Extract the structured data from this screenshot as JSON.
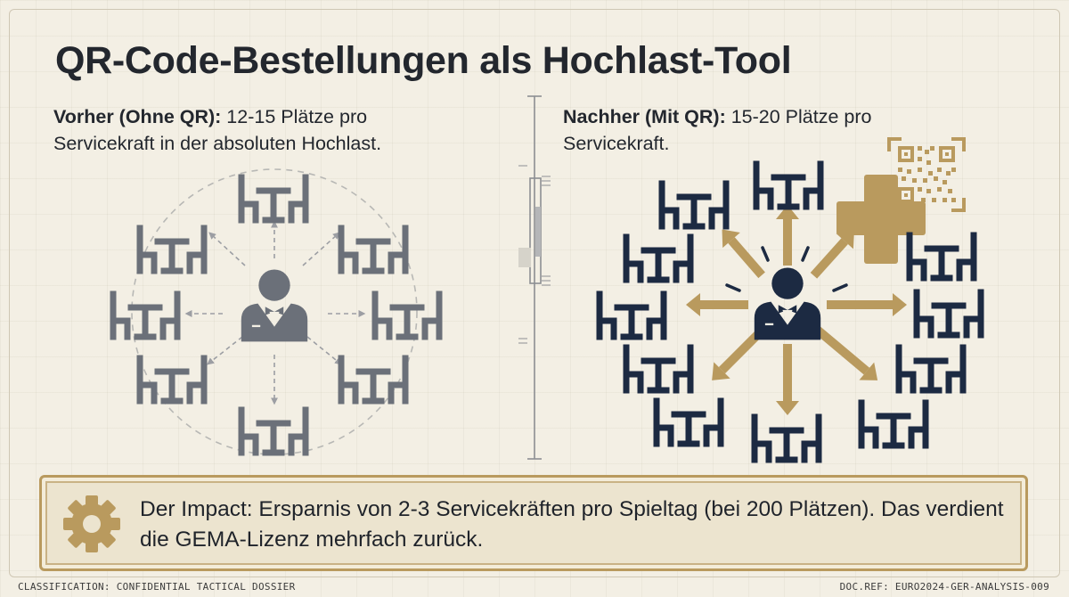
{
  "title": "QR-Code-Bestellungen als Hochlast-Tool",
  "before": {
    "label": "Vorher (Ohne QR):",
    "text": " 12-15 Plätze pro Servicekraft in der absoluten Hochlast."
  },
  "after": {
    "label": "Nachher (Mit QR):",
    "text": " 15-20 Plätze pro Servicekraft."
  },
  "impact": {
    "text": "Der Impact: Ersparnis von 2-3 Servicekräften pro Spieltag (bei 200 Plätzen).  Das verdient die GEMA-Lizenz mehrfach zurück."
  },
  "footer": {
    "left": "CLASSIFICATION: CONFIDENTIAL TACTICAL DOSSIER",
    "right": "DOC.REF: EURO2024-GER-ANALYSIS-009"
  },
  "colors": {
    "background": "#f3efe4",
    "text": "#23272e",
    "gray_icon": "#6b7079",
    "navy_icon": "#1c2a42",
    "gold_accent": "#b99a5e"
  },
  "icons": {
    "table": "table-with-chairs-icon",
    "waiter": "waiter-icon",
    "qr": "qr-code-icon",
    "plus": "plus-icon",
    "gear": "gear-icon"
  }
}
